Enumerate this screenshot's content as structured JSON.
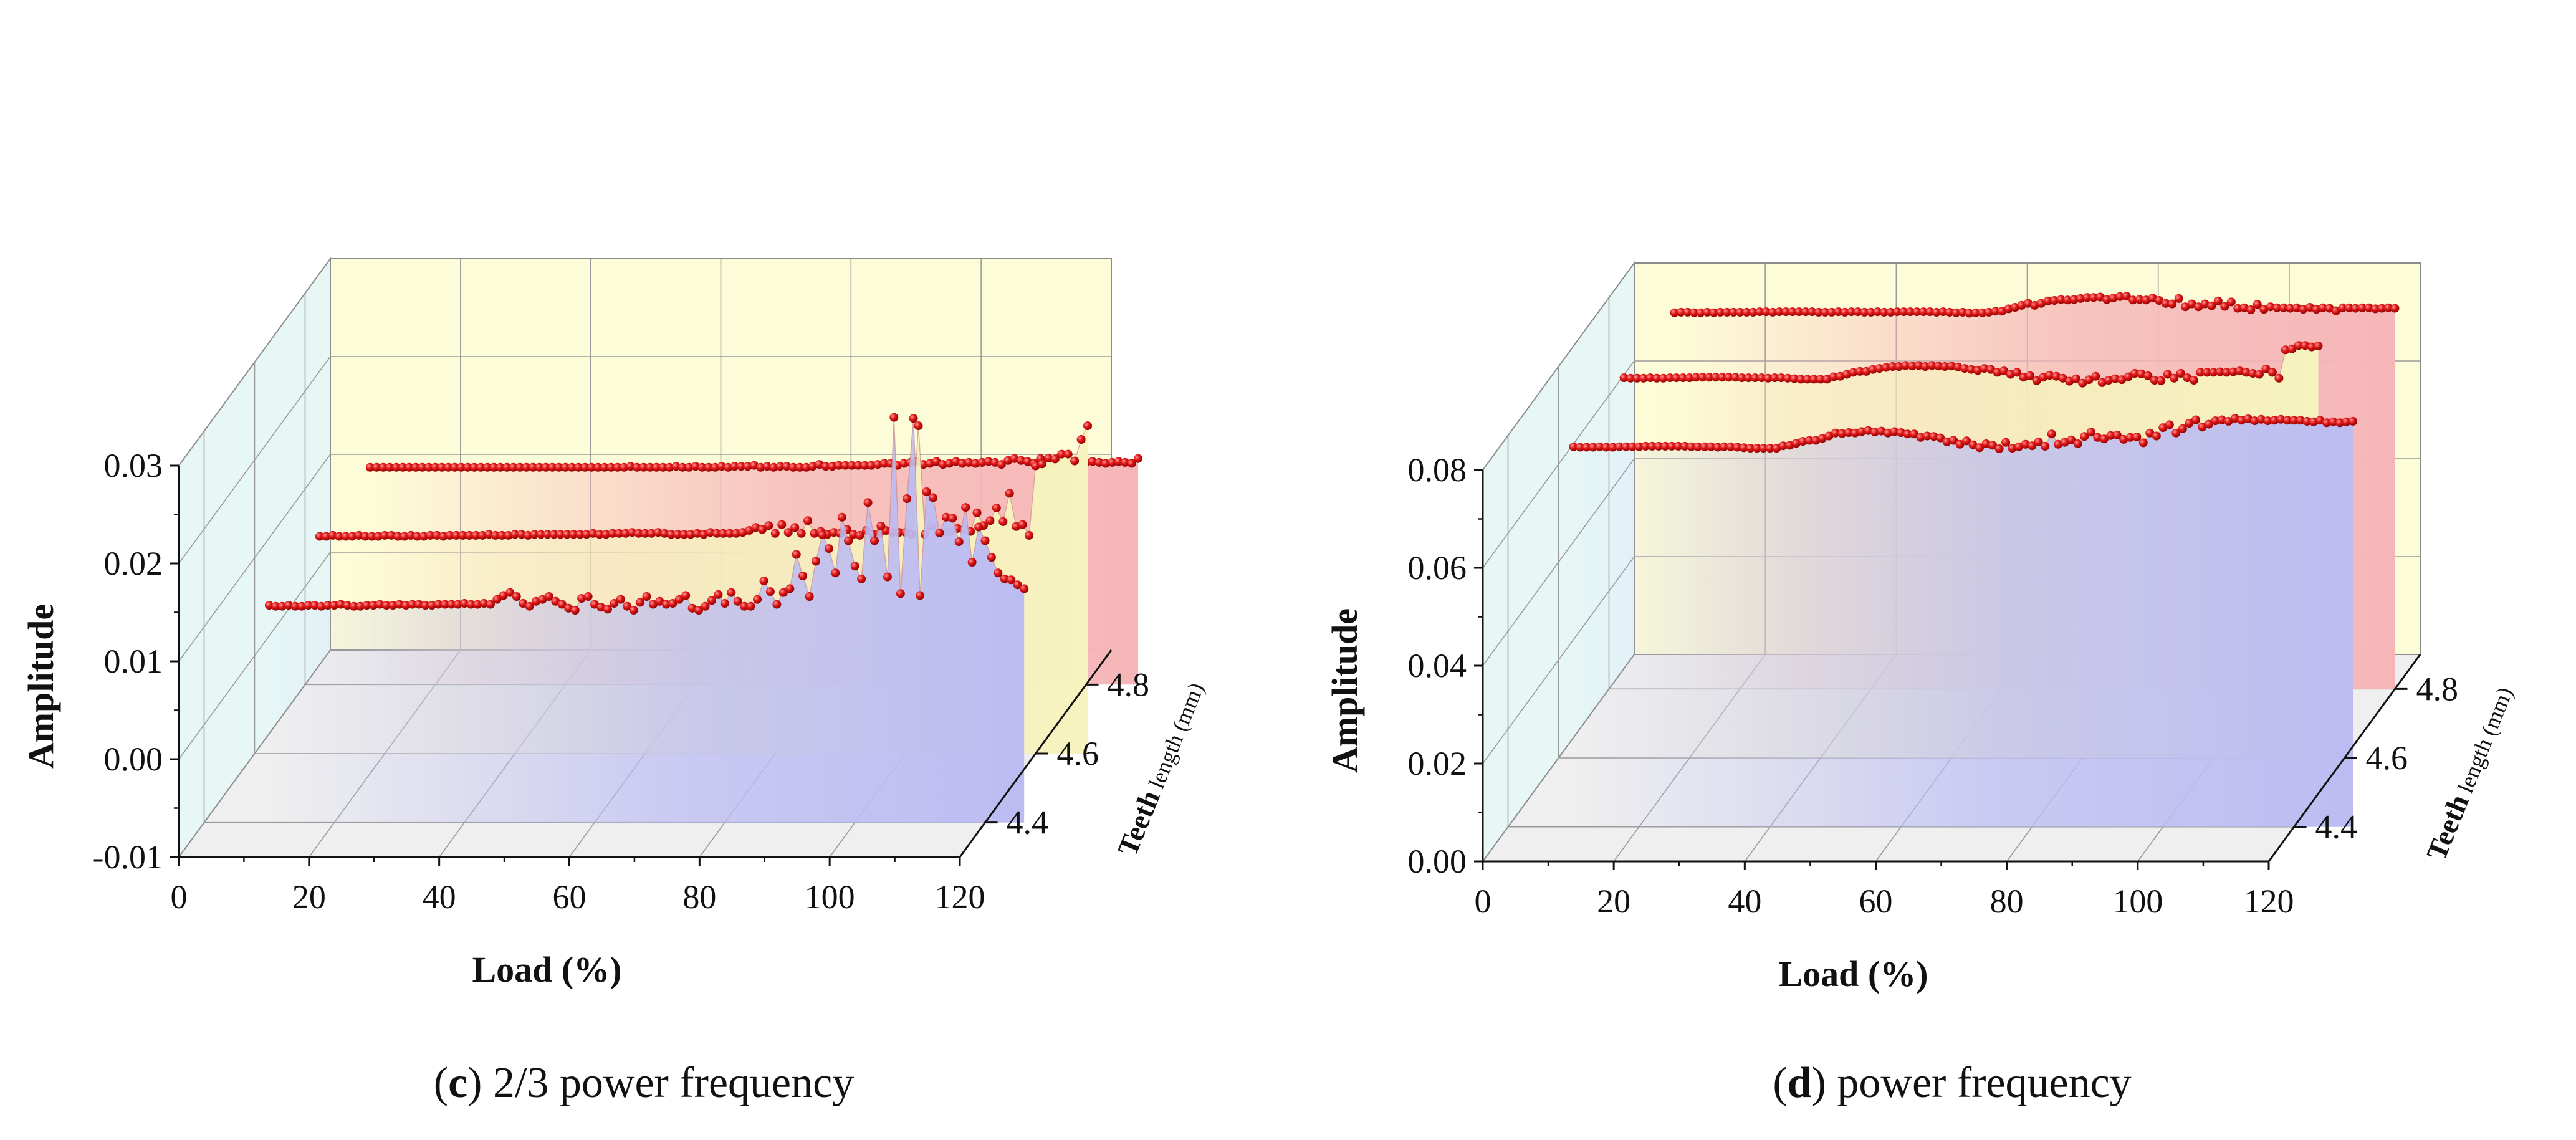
{
  "figure": {
    "panels": [
      {
        "id": "c",
        "caption_letter": "c",
        "caption_text": " 2/3 power frequency",
        "caption_open": "(",
        "caption_close": ")"
      },
      {
        "id": "d",
        "caption_letter": "d",
        "caption_text": " power frequency",
        "caption_open": "(",
        "caption_close": ")"
      }
    ]
  },
  "colors": {
    "back_wall": "#fdfcd8",
    "side_wall": "#e6f7f6",
    "floor": "#efefef",
    "grid": "#9a9a9a",
    "marker": "#d01414",
    "series_4_4": "#bcbcf3",
    "series_4_6": "#f6f3be",
    "series_4_8": "#f6b6b8"
  },
  "chart_data": [
    {
      "panel": "c",
      "type": "line",
      "style": "3d-waterfall",
      "title": "",
      "xlabel": "Load (%)",
      "ylabel": "Amplitude",
      "zlabel_main": "Teeth",
      "zlabel_sub": " length (mm)",
      "xlim": [
        0,
        120
      ],
      "ylim": [
        -0.01,
        0.03
      ],
      "zlim": [
        4.3,
        4.9
      ],
      "x_ticks": [
        "0",
        "20",
        "40",
        "60",
        "80",
        "100",
        "120"
      ],
      "y_ticks": [
        "-0.01",
        "0.00",
        "0.01",
        "0.02",
        "0.03"
      ],
      "z_ticks": [
        "4.4",
        "4.6",
        "4.8"
      ],
      "x_start": 10,
      "x_step": 1,
      "series": [
        {
          "name": "4.4",
          "z": 4.4,
          "values": [
            0.0122,
            0.0121,
            0.0121,
            0.0122,
            0.0121,
            0.0121,
            0.0122,
            0.0122,
            0.0121,
            0.0122,
            0.0122,
            0.0123,
            0.0122,
            0.0121,
            0.0121,
            0.0122,
            0.0122,
            0.0123,
            0.0122,
            0.0122,
            0.0123,
            0.0122,
            0.0123,
            0.0123,
            0.0122,
            0.0122,
            0.0123,
            0.0123,
            0.0123,
            0.0123,
            0.0124,
            0.0123,
            0.0123,
            0.0124,
            0.0123,
            0.0128,
            0.0132,
            0.0135,
            0.0131,
            0.0124,
            0.0121,
            0.0126,
            0.0128,
            0.0131,
            0.0126,
            0.0123,
            0.0119,
            0.0117,
            0.0129,
            0.0131,
            0.0123,
            0.012,
            0.0118,
            0.0124,
            0.0128,
            0.0121,
            0.0117,
            0.0125,
            0.0131,
            0.0123,
            0.0126,
            0.0123,
            0.0124,
            0.0128,
            0.0132,
            0.0119,
            0.0117,
            0.0121,
            0.0127,
            0.0133,
            0.0124,
            0.0135,
            0.0126,
            0.0121,
            0.0121,
            0.0128,
            0.0147,
            0.0136,
            0.0123,
            0.0135,
            0.0139,
            0.0174,
            0.0152,
            0.0131,
            0.0167,
            0.0194,
            0.018,
            0.0155,
            0.0212,
            0.0188,
            0.0162,
            0.0149,
            0.0227,
            0.0188,
            0.0203,
            0.0151,
            0.0314,
            0.0134,
            0.0231,
            0.0313,
            0.0132,
            0.0238,
            0.0232,
            0.0196,
            0.0212,
            0.0211,
            0.0187,
            0.0222,
            0.0166,
            0.0202,
            0.0188,
            0.0171,
            0.0155,
            0.0149,
            0.0148,
            0.0143,
            0.0139
          ],
          "color": "#bcbcf3"
        },
        {
          "name": "4.6",
          "z": 4.6,
          "values": [
            0.0122,
            0.0122,
            0.0123,
            0.0122,
            0.0122,
            0.0122,
            0.0123,
            0.0122,
            0.0122,
            0.0122,
            0.0123,
            0.0123,
            0.0122,
            0.0122,
            0.0123,
            0.0122,
            0.0122,
            0.0123,
            0.0123,
            0.0122,
            0.0123,
            0.0123,
            0.0123,
            0.0123,
            0.0123,
            0.0123,
            0.0124,
            0.0123,
            0.0123,
            0.0123,
            0.0124,
            0.0124,
            0.0123,
            0.0124,
            0.0124,
            0.0124,
            0.0124,
            0.0124,
            0.0124,
            0.0124,
            0.0124,
            0.0124,
            0.0125,
            0.0124,
            0.0124,
            0.0125,
            0.0125,
            0.0125,
            0.0126,
            0.0125,
            0.0125,
            0.0125,
            0.0126,
            0.0125,
            0.0124,
            0.0124,
            0.0124,
            0.0124,
            0.0125,
            0.0124,
            0.0126,
            0.0125,
            0.0125,
            0.0125,
            0.0125,
            0.0126,
            0.0128,
            0.0131,
            0.0129,
            0.0133,
            0.0125,
            0.0134,
            0.0126,
            0.0131,
            0.0125,
            0.0138,
            0.0125,
            0.0127,
            0.0124,
            0.0126,
            0.0125,
            0.0129,
            0.0124,
            0.0123,
            0.0128,
            0.0124,
            0.0125,
            0.0128,
            0.0126,
            0.0126,
            0.0126,
            0.0124,
            0.0235,
            0.0124,
            0.0132,
            0.0125,
            0.0126,
            0.0127,
            0.013,
            0.0129,
            0.0127,
            0.0146,
            0.0133,
            0.0138,
            0.0151,
            0.0137,
            0.0166,
            0.0132,
            0.0134,
            0.0123,
            0.0194,
            0.0196,
            0.0202,
            0.0201,
            0.0206,
            0.0206,
            0.0199,
            0.0221,
            0.0235
          ],
          "color": "#f6f3be"
        },
        {
          "name": "4.8",
          "z": 4.8,
          "values": [
            0.0122,
            0.0122,
            0.0122,
            0.0122,
            0.0122,
            0.0122,
            0.0122,
            0.0122,
            0.0122,
            0.0122,
            0.0122,
            0.0122,
            0.0122,
            0.0122,
            0.0122,
            0.0122,
            0.0122,
            0.0122,
            0.0122,
            0.0122,
            0.0122,
            0.0122,
            0.0122,
            0.0122,
            0.0122,
            0.0122,
            0.0122,
            0.0122,
            0.0122,
            0.0122,
            0.0122,
            0.0122,
            0.0122,
            0.0122,
            0.0122,
            0.0122,
            0.0122,
            0.0122,
            0.0122,
            0.0122,
            0.0123,
            0.0122,
            0.0122,
            0.0122,
            0.0122,
            0.0122,
            0.0122,
            0.0123,
            0.0122,
            0.0122,
            0.0123,
            0.0122,
            0.0122,
            0.0122,
            0.0123,
            0.0122,
            0.0123,
            0.0123,
            0.0123,
            0.0124,
            0.0122,
            0.0123,
            0.0122,
            0.0123,
            0.0123,
            0.0122,
            0.0122,
            0.0122,
            0.0123,
            0.0125,
            0.0123,
            0.0123,
            0.0124,
            0.0124,
            0.0124,
            0.0124,
            0.0124,
            0.0124,
            0.0125,
            0.0126,
            0.0126,
            0.0124,
            0.0126,
            0.0127,
            0.0128,
            0.0125,
            0.0126,
            0.0128,
            0.0125,
            0.0126,
            0.0128,
            0.0126,
            0.0127,
            0.0126,
            0.0127,
            0.0128,
            0.0127,
            0.0125,
            0.0129,
            0.0131,
            0.0129,
            0.0128,
            0.0126,
            0.0131,
            0.0126,
            0.0127,
            0.0133,
            0.0129,
            0.0127,
            0.0126,
            0.0127,
            0.0128,
            0.0127,
            0.0126,
            0.0127,
            0.0128,
            0.0127,
            0.0126,
            0.0131
          ],
          "color": "#f6b6b8"
        }
      ]
    },
    {
      "panel": "d",
      "type": "line",
      "style": "3d-waterfall",
      "title": "",
      "xlabel": "Load (%)",
      "ylabel": "Amplitude",
      "zlabel_main": "Teeth",
      "zlabel_sub": " length (mm)",
      "xlim": [
        0,
        120
      ],
      "ylim": [
        0.0,
        0.08
      ],
      "zlim": [
        4.3,
        4.9
      ],
      "x_ticks": [
        "0",
        "20",
        "40",
        "60",
        "80",
        "100",
        "120"
      ],
      "y_ticks": [
        "0.00",
        "0.02",
        "0.04",
        "0.06",
        "0.08"
      ],
      "z_ticks": [
        "4.4",
        "4.6",
        "4.8"
      ],
      "x_start": 10,
      "x_step": 1,
      "series": [
        {
          "name": "4.4",
          "z": 4.4,
          "values": [
            0.0777,
            0.0776,
            0.0776,
            0.0776,
            0.0777,
            0.0776,
            0.0776,
            0.0777,
            0.0777,
            0.0777,
            0.0777,
            0.0778,
            0.0778,
            0.0778,
            0.0778,
            0.0778,
            0.0778,
            0.0778,
            0.0777,
            0.0777,
            0.0777,
            0.0777,
            0.0776,
            0.0777,
            0.0777,
            0.0776,
            0.0775,
            0.0774,
            0.0774,
            0.0774,
            0.0774,
            0.0774,
            0.0779,
            0.078,
            0.0784,
            0.0788,
            0.079,
            0.079,
            0.0794,
            0.0799,
            0.0805,
            0.0804,
            0.0806,
            0.0805,
            0.0808,
            0.081,
            0.0807,
            0.0809,
            0.0805,
            0.0808,
            0.0806,
            0.0803,
            0.0803,
            0.0796,
            0.0799,
            0.0798,
            0.0795,
            0.0787,
            0.079,
            0.0782,
            0.0789,
            0.0781,
            0.0775,
            0.0783,
            0.078,
            0.0773,
            0.0786,
            0.0774,
            0.0777,
            0.0782,
            0.0779,
            0.0787,
            0.0778,
            0.0803,
            0.0782,
            0.0786,
            0.0791,
            0.0783,
            0.0798,
            0.0807,
            0.0796,
            0.0793,
            0.08,
            0.0801,
            0.0792,
            0.0796,
            0.0797,
            0.0785,
            0.0805,
            0.0799,
            0.0816,
            0.0822,
            0.0805,
            0.0814,
            0.0825,
            0.0832,
            0.0817,
            0.0823,
            0.083,
            0.0832,
            0.0829,
            0.0835,
            0.0831,
            0.0834,
            0.083,
            0.0833,
            0.083,
            0.0831,
            0.0833,
            0.0831,
            0.0831,
            0.0831,
            0.0829,
            0.0828,
            0.0831,
            0.0826,
            0.0828,
            0.0826,
            0.0828,
            0.0829
          ],
          "color": "#bcbcf3"
        },
        {
          "name": "4.6",
          "z": 4.6,
          "values": [
            0.0777,
            0.0776,
            0.0776,
            0.0776,
            0.0777,
            0.0776,
            0.0776,
            0.0777,
            0.0777,
            0.0777,
            0.0777,
            0.0778,
            0.0778,
            0.0778,
            0.0778,
            0.0778,
            0.0778,
            0.0778,
            0.0777,
            0.0777,
            0.0777,
            0.0777,
            0.0776,
            0.0777,
            0.0777,
            0.0776,
            0.0775,
            0.0774,
            0.0774,
            0.0774,
            0.0774,
            0.0774,
            0.0779,
            0.078,
            0.0784,
            0.0788,
            0.079,
            0.079,
            0.0794,
            0.0796,
            0.0798,
            0.08,
            0.08,
            0.0802,
            0.0801,
            0.0802,
            0.08,
            0.0802,
            0.0801,
            0.08,
            0.0801,
            0.0799,
            0.0796,
            0.0794,
            0.0792,
            0.0796,
            0.0794,
            0.0788,
            0.0791,
            0.0784,
            0.0788,
            0.0778,
            0.0781,
            0.0771,
            0.0778,
            0.0782,
            0.078,
            0.0776,
            0.077,
            0.0775,
            0.0766,
            0.0773,
            0.078,
            0.0767,
            0.0772,
            0.0775,
            0.0773,
            0.0779,
            0.0786,
            0.0785,
            0.0781,
            0.0772,
            0.0771,
            0.0784,
            0.0776,
            0.0786,
            0.0777,
            0.0772,
            0.0788,
            0.0788,
            0.0788,
            0.0789,
            0.0788,
            0.0789,
            0.0791,
            0.0788,
            0.0786,
            0.0784,
            0.0795,
            0.0788,
            0.0776,
            0.0834,
            0.0836,
            0.0843,
            0.0843,
            0.084,
            0.0842
          ],
          "color": "#f6f3be"
        },
        {
          "name": "4.8",
          "z": 4.8,
          "values": [
            0.0769,
            0.077,
            0.077,
            0.0769,
            0.0769,
            0.077,
            0.0769,
            0.077,
            0.077,
            0.077,
            0.077,
            0.077,
            0.077,
            0.0771,
            0.0771,
            0.077,
            0.0771,
            0.0771,
            0.0771,
            0.0771,
            0.0771,
            0.0771,
            0.077,
            0.077,
            0.077,
            0.0771,
            0.077,
            0.0771,
            0.0771,
            0.077,
            0.077,
            0.0771,
            0.077,
            0.077,
            0.0771,
            0.0771,
            0.0771,
            0.0771,
            0.0771,
            0.0771,
            0.077,
            0.0771,
            0.077,
            0.0769,
            0.077,
            0.0768,
            0.0769,
            0.0769,
            0.077,
            0.0772,
            0.0772,
            0.0777,
            0.078,
            0.0784,
            0.0788,
            0.0784,
            0.0788,
            0.0793,
            0.0794,
            0.0796,
            0.0795,
            0.0796,
            0.0798,
            0.08,
            0.08,
            0.0801,
            0.0796,
            0.0799,
            0.0802,
            0.0803,
            0.0795,
            0.0796,
            0.0795,
            0.0799,
            0.0794,
            0.0788,
            0.0787,
            0.0798,
            0.0781,
            0.0787,
            0.0781,
            0.0787,
            0.0783,
            0.0793,
            0.0782,
            0.0791,
            0.0778,
            0.0779,
            0.0775,
            0.0786,
            0.0776,
            0.0781,
            0.0779,
            0.0779,
            0.0778,
            0.0779,
            0.0776,
            0.078,
            0.0776,
            0.0779,
            0.0778,
            0.0773,
            0.0779,
            0.0779,
            0.0778,
            0.0779,
            0.0779,
            0.0777,
            0.0778,
            0.0779,
            0.0778
          ],
          "color": "#f6b6b8"
        }
      ]
    }
  ]
}
